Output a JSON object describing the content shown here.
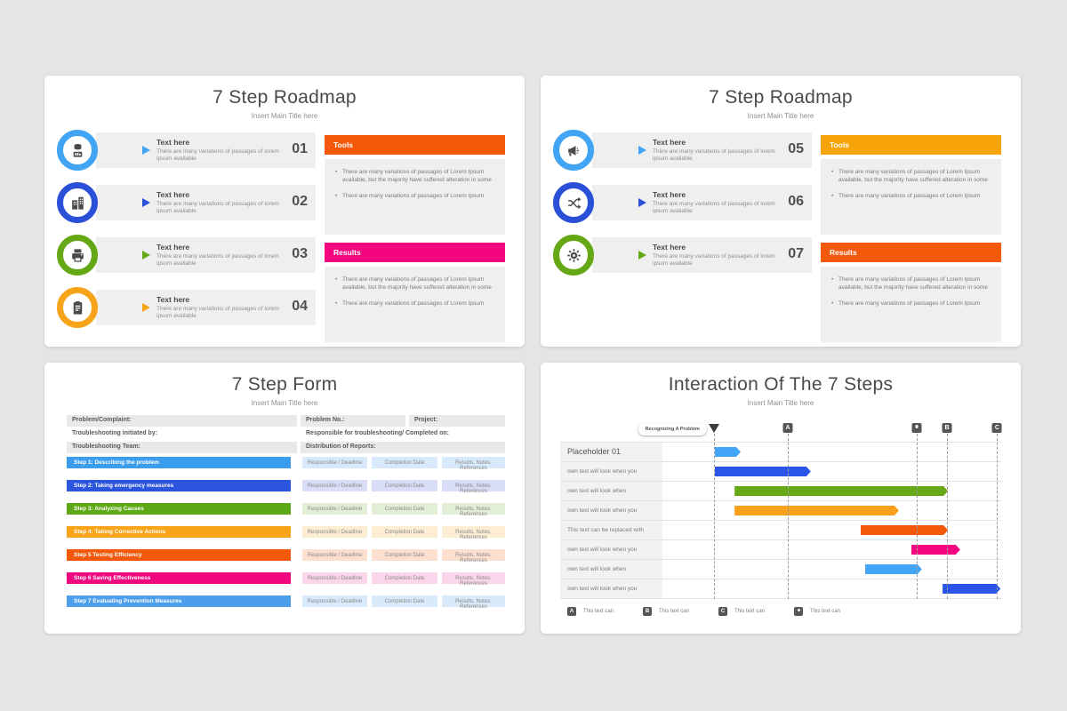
{
  "shared": {
    "subtitle": "Insert Main Title here",
    "step_desc": "There are many variations of passages of lorem ipsum available",
    "bullet_long": "There are many variations of passages of Lorem Ipsum available, but the majority have suffered alteration in some",
    "bullet_short": "There are many variations of passages of Lorem Ipsum"
  },
  "slides": {
    "roadmap1": {
      "title": "7 Step Roadmap",
      "subtitle": "Insert Main Title here",
      "steps": [
        {
          "number": "01",
          "icon": "report-data-icon",
          "color": "#41a4f4",
          "title": "Text here",
          "desc": "There are many variations of passages of lorem ipsum available"
        },
        {
          "number": "02",
          "icon": "organization-icon",
          "color": "#2b50d8",
          "title": "Text here",
          "desc": "There are many variations of passages of lorem ipsum available"
        },
        {
          "number": "03",
          "icon": "machine-icon",
          "color": "#65a816",
          "title": "Text here",
          "desc": "There are many variations of passages of lorem ipsum available"
        },
        {
          "number": "04",
          "icon": "clipboard-icon",
          "color": "#f7a41b",
          "title": "Text here",
          "desc": "There are many variations of passages of lorem ipsum available"
        }
      ],
      "panels": [
        {
          "label": "Tools",
          "color": "#f4590b",
          "bullets": [
            "There are many variations of passages of Lorem Ipsum available, but the majority have suffered alteration in some",
            "There are many variations of passages of Lorem Ipsum"
          ]
        },
        {
          "label": "Results",
          "color": "#f3067f",
          "bullets": [
            "There are many variations of passages of Lorem Ipsum available, but the majority have suffered alteration in some",
            "There are many variations of passages of Lorem Ipsum"
          ]
        }
      ]
    },
    "roadmap2": {
      "title": "7 Step Roadmap",
      "subtitle": "Insert Main Title here",
      "steps": [
        {
          "number": "05",
          "icon": "megaphone-icon",
          "color": "#41a4f4",
          "title": "Text here",
          "desc": "There are many variations of passages of lorem ipsum available"
        },
        {
          "number": "06",
          "icon": "shuffle-icon",
          "color": "#2b50d8",
          "title": "Text here",
          "desc": "There are many variations of passages of lorem ipsum available"
        },
        {
          "number": "07",
          "icon": "gear-icon",
          "color": "#65a816",
          "title": "Text here",
          "desc": "There are many variations of passages of lorem ipsum available"
        }
      ],
      "panels": [
        {
          "label": "Tools",
          "color": "#f7a408",
          "bullets": [
            "There are many variations of passages of Lorem Ipsum available, but the majority have suffered alteration in some",
            "There are many variations of passages of Lorem Ipsum"
          ]
        },
        {
          "label": "Results",
          "color": "#f4590b",
          "bullets": [
            "There are many variations of passages of Lorem Ipsum available, but the majority have suffered alteration in some",
            "There are many variations of passages of Lorem Ipsum"
          ]
        }
      ]
    },
    "form": {
      "title": "7 Step Form",
      "subtitle": "Insert Main Title here",
      "info_rows": [
        {
          "shaded": true,
          "cells": [
            "Problem/Complaint:",
            "Problem No.:",
            "Project:"
          ]
        },
        {
          "shaded": false,
          "cells": [
            "Troubleshooting initiated by:",
            "Responsible for troubleshooting/ Completed on:"
          ]
        },
        {
          "shaded": true,
          "cells": [
            "Troubleshooting Team:",
            "Distribution of Reports:"
          ]
        }
      ],
      "step_cells": [
        "Responsible / Deadline",
        "Completion Date",
        "Results, Notes, References"
      ],
      "steps": [
        {
          "label": "Step 1: Describing the problem",
          "color": "#3b9dee",
          "tint": "#d7e9fb"
        },
        {
          "label": "Step 2: Taking emergency measures",
          "color": "#2c55de",
          "tint": "#daddf8"
        },
        {
          "label": "Step 3: Analyzing Causes",
          "color": "#5ca816",
          "tint": "#e2eed5"
        },
        {
          "label": "Step 4: Taking Corrective Actions",
          "color": "#f7a41b",
          "tint": "#fdedd2"
        },
        {
          "label": "Step 5 Testing Efficiency",
          "color": "#f4590b",
          "tint": "#fddfd0"
        },
        {
          "label": "Step 6 Saving Effectiveness",
          "color": "#f0067f",
          "tint": "#fbd5e9"
        },
        {
          "label": "Step 7 Evaluating Prevention Measures",
          "color": "#4d9fec",
          "tint": "#d9eafb"
        }
      ]
    },
    "interaction": {
      "title": "Interaction Of The 7 Steps",
      "subtitle": "Insert Main Title here"
    }
  },
  "chart_data": {
    "type": "gantt",
    "title": "Interaction Of The 7 Steps",
    "callout": "Recognizing A Problem",
    "axis_note": "timeline positions are percentages of the plot track width",
    "milestones": [
      {
        "glyph": "triangle",
        "pos_pct": 15.2
      },
      {
        "glyph": "A",
        "pos_pct": 37.0
      },
      {
        "glyph": "dot",
        "pos_pct": 75.1
      },
      {
        "glyph": "B",
        "pos_pct": 84.0
      },
      {
        "glyph": "C",
        "pos_pct": 98.8
      }
    ],
    "rows": [
      {
        "label": "Placeholder 01",
        "emphasis": true,
        "start_pct": 15.5,
        "end_pct": 23.1,
        "color": "#42a5f5"
      },
      {
        "label": "own text will look when you",
        "emphasis": false,
        "start_pct": 15.5,
        "end_pct": 43.8,
        "color": "#2b55e8"
      },
      {
        "label": "own text will look when",
        "emphasis": false,
        "start_pct": 21.3,
        "end_pct": 84.3,
        "color": "#66a816"
      },
      {
        "label": "own text will look when you",
        "emphasis": false,
        "start_pct": 21.3,
        "end_pct": 69.8,
        "color": "#f9a11b"
      },
      {
        "label": "This text can be replaced with",
        "emphasis": false,
        "start_pct": 58.5,
        "end_pct": 84.3,
        "color": "#f4590b"
      },
      {
        "label": "own text will look when you",
        "emphasis": false,
        "start_pct": 73.5,
        "end_pct": 87.9,
        "color": "#f3067f"
      },
      {
        "label": "own text will look when",
        "emphasis": false,
        "start_pct": 59.8,
        "end_pct": 76.6,
        "color": "#42a5f5"
      },
      {
        "label": "own text will look when you",
        "emphasis": false,
        "start_pct": 82.7,
        "end_pct": 99.8,
        "color": "#2b55e8"
      }
    ],
    "legend": [
      {
        "glyph": "A",
        "label": "This text can"
      },
      {
        "glyph": "B",
        "label": "This text can"
      },
      {
        "glyph": "C",
        "label": "This text can"
      },
      {
        "glyph": "dot",
        "label": "This text can"
      }
    ]
  }
}
